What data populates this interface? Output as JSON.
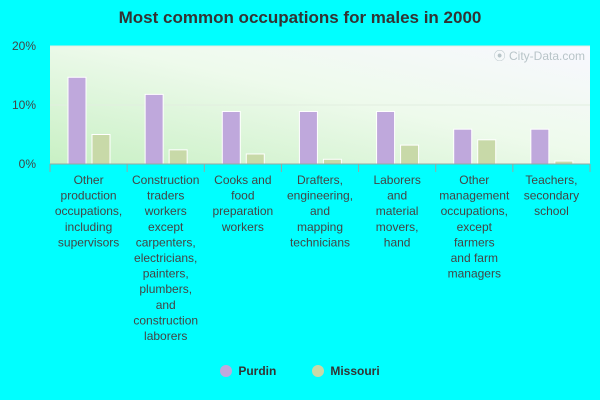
{
  "chart_data": {
    "type": "bar",
    "title": "Most common occupations for males in 2000",
    "categories": [
      [
        "Other",
        "production",
        "occupations,",
        "including",
        "supervisors"
      ],
      [
        "Construction",
        "traders",
        "workers",
        "except",
        "carpenters,",
        "electricians,",
        "painters,",
        "plumbers,",
        "and",
        "construction",
        "laborers"
      ],
      [
        "Cooks and",
        "food",
        "preparation",
        "workers"
      ],
      [
        "Drafters,",
        "engineering,",
        "and",
        "mapping",
        "technicians"
      ],
      [
        "Laborers",
        "and",
        "material",
        "movers,",
        "hand"
      ],
      [
        "Other",
        "management",
        "occupations,",
        "except",
        "farmers",
        "and farm",
        "managers"
      ],
      [
        "Teachers,",
        "secondary",
        "school"
      ]
    ],
    "series": [
      {
        "name": "Purdin",
        "color": "#BFA8DC",
        "values": [
          14.7,
          11.8,
          8.9,
          8.9,
          8.9,
          5.9,
          5.9
        ]
      },
      {
        "name": "Missouri",
        "color": "#C8D9A8",
        "values": [
          5.0,
          2.4,
          1.7,
          0.8,
          3.2,
          4.1,
          0.5
        ]
      }
    ],
    "yticks": [
      "0%",
      "10%",
      "20%"
    ],
    "ytick_values": [
      0,
      10,
      20
    ],
    "ylim": [
      0,
      20
    ],
    "grid": true,
    "legend_position": "bottom-center",
    "watermark": "City-Data.com"
  }
}
